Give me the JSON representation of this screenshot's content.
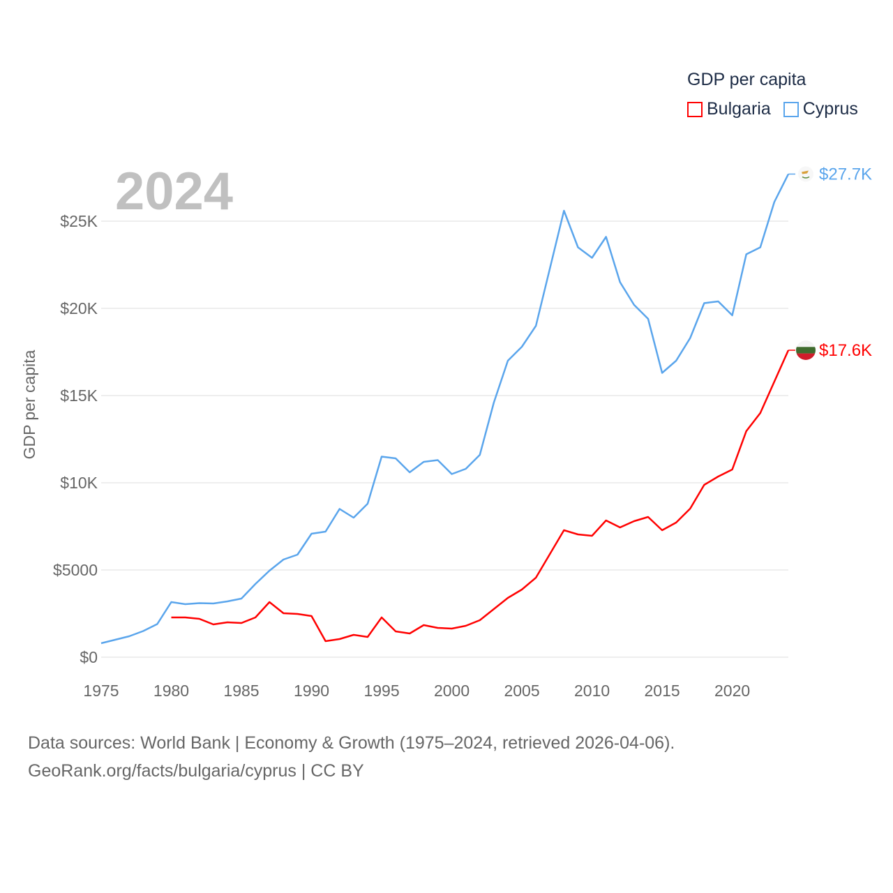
{
  "chart_data": {
    "type": "line",
    "title": "GDP per capita",
    "year_label": "2024",
    "xlabel": "",
    "ylabel": "GDP per capita",
    "xlim": [
      1975,
      2024
    ],
    "ylim": [
      0,
      28000
    ],
    "x_ticks": [
      1975,
      1980,
      1985,
      1990,
      1995,
      2000,
      2005,
      2010,
      2015,
      2020
    ],
    "y_ticks": [
      0,
      5000,
      10000,
      15000,
      20000,
      25000
    ],
    "y_tick_labels": [
      "$0",
      "$5000",
      "$10K",
      "$15K",
      "$20K",
      "$25K"
    ],
    "grid": true,
    "legend_placement": "top-right",
    "series": [
      {
        "name": "Bulgaria",
        "color": "#ff0000",
        "end_label": "$17.6K",
        "x": [
          1980,
          1981,
          1982,
          1983,
          1984,
          1985,
          1986,
          1987,
          1988,
          1989,
          1990,
          1991,
          1992,
          1993,
          1994,
          1995,
          1996,
          1997,
          1998,
          1999,
          2000,
          2001,
          2002,
          2003,
          2004,
          2005,
          2006,
          2007,
          2008,
          2009,
          2010,
          2011,
          2012,
          2013,
          2014,
          2015,
          2016,
          2017,
          2018,
          2019,
          2020,
          2021,
          2022,
          2023,
          2024
        ],
        "values": [
          2280,
          2280,
          2200,
          1880,
          2000,
          1960,
          2280,
          3160,
          2520,
          2480,
          2360,
          920,
          1040,
          1280,
          1160,
          2280,
          1480,
          1360,
          1840,
          1680,
          1640,
          1800,
          2120,
          2760,
          3400,
          3880,
          4560,
          5920,
          7280,
          7040,
          6960,
          7840,
          7440,
          7800,
          8040,
          7280,
          7720,
          8520,
          9880,
          10360,
          10760,
          12960,
          14000,
          15800,
          17600
        ]
      },
      {
        "name": "Cyprus",
        "color": "#5aa5ec",
        "end_label": "$27.7K",
        "x": [
          1975,
          1976,
          1977,
          1978,
          1979,
          1980,
          1981,
          1982,
          1983,
          1984,
          1985,
          1986,
          1987,
          1988,
          1989,
          1990,
          1991,
          1992,
          1993,
          1994,
          1995,
          1996,
          1997,
          1998,
          1999,
          2000,
          2001,
          2002,
          2003,
          2004,
          2005,
          2006,
          2007,
          2008,
          2009,
          2010,
          2011,
          2012,
          2013,
          2014,
          2015,
          2016,
          2017,
          2018,
          2019,
          2020,
          2021,
          2022,
          2023,
          2024
        ],
        "values": [
          800,
          1000,
          1200,
          1500,
          1900,
          3160,
          3040,
          3100,
          3080,
          3200,
          3360,
          4200,
          4960,
          5600,
          5880,
          7080,
          7200,
          8500,
          8000,
          8800,
          11500,
          11400,
          10600,
          11200,
          11300,
          10500,
          10800,
          11600,
          14600,
          17000,
          17800,
          19000,
          22300,
          25600,
          23500,
          22900,
          24100,
          21500,
          20200,
          19400,
          16300,
          17000,
          18300,
          20300,
          20400,
          19600,
          23100,
          23500,
          26100,
          27700
        ]
      }
    ]
  },
  "footer": {
    "line1": "Data sources: World Bank | Economy & Growth (1975–2024, retrieved 2026-04-06).",
    "line2": "GeoRank.org/facts/bulgaria/cyprus | CC BY"
  }
}
